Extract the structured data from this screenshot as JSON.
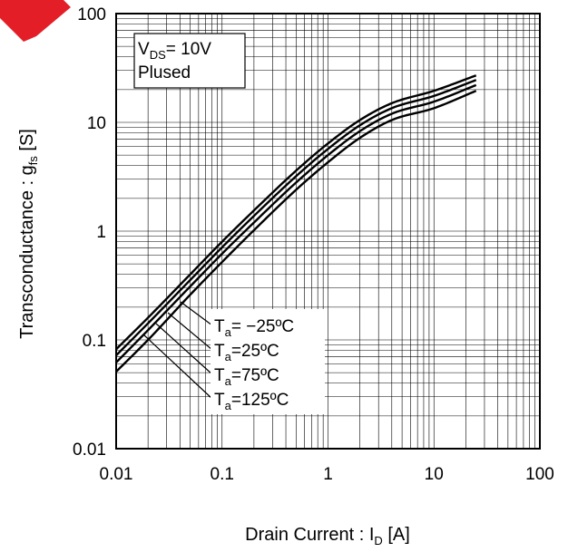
{
  "chart_data": {
    "type": "line",
    "title": "",
    "xscale": "log",
    "yscale": "log",
    "xlim": [
      0.01,
      100
    ],
    "ylim": [
      0.01,
      100
    ],
    "grid": true,
    "xlabel": {
      "main": "Drain Current : I",
      "sub": "D",
      "unit": " [A]"
    },
    "ylabel": {
      "main": "Transconductance : g",
      "sub": "fs",
      "unit": " [S]"
    },
    "xticks": [
      {
        "value": 0.01,
        "label": "0.01"
      },
      {
        "value": 0.1,
        "label": "0.1"
      },
      {
        "value": 1,
        "label": "1"
      },
      {
        "value": 10,
        "label": "10"
      },
      {
        "value": 100,
        "label": "100"
      }
    ],
    "yticks": [
      {
        "value": 0.01,
        "label": "0.01"
      },
      {
        "value": 0.1,
        "label": "0.1"
      },
      {
        "value": 1,
        "label": "1"
      },
      {
        "value": 10,
        "label": "10"
      },
      {
        "value": 100,
        "label": "100"
      }
    ],
    "condition_box": {
      "line1_main": "V",
      "line1_sub": "DS",
      "line1_rest": "= 10V",
      "line2": "Plused"
    },
    "series": [
      {
        "name_main": "T",
        "name_sub": "a",
        "name_rest": "= −25ºC",
        "x": [
          0.01,
          0.02,
          0.05,
          0.1,
          0.2,
          0.5,
          1,
          2,
          4,
          10,
          25
        ],
        "y": [
          0.082,
          0.16,
          0.4,
          0.8,
          1.55,
          3.6,
          6.4,
          10.5,
          15.0,
          19.5,
          27.0
        ]
      },
      {
        "name_main": "T",
        "name_sub": "a",
        "name_rest": "=25ºC",
        "x": [
          0.01,
          0.02,
          0.05,
          0.1,
          0.2,
          0.5,
          1,
          2,
          4,
          10,
          25
        ],
        "y": [
          0.072,
          0.142,
          0.355,
          0.71,
          1.38,
          3.2,
          5.7,
          9.4,
          13.5,
          17.5,
          24.5
        ]
      },
      {
        "name_main": "T",
        "name_sub": "a",
        "name_rest": "=75ºC",
        "x": [
          0.01,
          0.02,
          0.05,
          0.1,
          0.2,
          0.5,
          1,
          2,
          4,
          10,
          25
        ],
        "y": [
          0.062,
          0.123,
          0.31,
          0.62,
          1.2,
          2.8,
          5.0,
          8.3,
          12.0,
          15.5,
          22.0
        ]
      },
      {
        "name_main": "T",
        "name_sub": "a",
        "name_rest": "=125ºC",
        "x": [
          0.01,
          0.02,
          0.05,
          0.1,
          0.2,
          0.5,
          1,
          2,
          4,
          10,
          25
        ],
        "y": [
          0.051,
          0.1,
          0.26,
          0.52,
          1.02,
          2.4,
          4.3,
          7.2,
          10.5,
          13.5,
          19.5
        ]
      }
    ]
  }
}
